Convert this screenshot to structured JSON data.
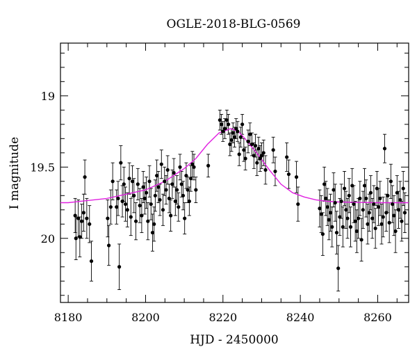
{
  "chart_data": {
    "type": "scatter",
    "title": "OGLE-2018-BLG-0569",
    "xlabel": "HJD - 2450000",
    "ylabel": "I magnitude",
    "xlim": [
      8178,
      8268
    ],
    "ylim": [
      20.45,
      18.63
    ],
    "y_inverted": true,
    "grid": false,
    "x_ticks": [
      8180,
      8200,
      8220,
      8240,
      8260
    ],
    "x_tick_labels": [
      "8180",
      "8200",
      "8220",
      "8240",
      "8260"
    ],
    "y_ticks": [
      19.0,
      19.5,
      20.0
    ],
    "y_tick_labels": [
      "19",
      "19.5",
      "20"
    ],
    "colors": {
      "points": "#000000",
      "model": "#e020e0"
    },
    "model": {
      "x": [
        8170,
        8180,
        8190,
        8200,
        8205,
        8210,
        8213,
        8216,
        8219,
        8222,
        8224,
        8226,
        8229,
        8232,
        8235,
        8238,
        8241,
        8244,
        8247,
        8250,
        8255,
        8260,
        8270
      ],
      "y": [
        19.75,
        19.75,
        19.72,
        19.66,
        19.6,
        19.51,
        19.44,
        19.34,
        19.26,
        19.23,
        19.25,
        19.31,
        19.41,
        19.52,
        19.62,
        19.68,
        19.71,
        19.73,
        19.74,
        19.745,
        19.748,
        19.75,
        19.75
      ]
    },
    "series": [
      {
        "x": [
          8181.8,
          8182.0,
          8182.6,
          8183.0,
          8183.5,
          8184.0,
          8184.3,
          8184.8,
          8185.5,
          8186.0,
          8190.2,
          8190.5,
          8191.0,
          8191.5,
          8192.5,
          8192.9,
          8193.2,
          8193.6,
          8194.0,
          8194.4,
          8194.8,
          8195.3,
          8195.8,
          8196.2,
          8196.6,
          8197.0,
          8197.5,
          8198.0,
          8198.5,
          8199.0,
          8199.4,
          8199.8,
          8200.2,
          8200.6,
          8201.0,
          8201.4,
          8201.8,
          8202.2,
          8202.5,
          8202.9,
          8203.3,
          8203.7,
          8204.1,
          8204.5,
          8204.9,
          8205.3,
          8205.7,
          8206.1,
          8206.5,
          8206.9,
          8207.3,
          8207.7,
          8208.1,
          8208.5,
          8208.9,
          8209.3,
          8209.7,
          8210.1,
          8210.5,
          8210.9,
          8211.3,
          8211.7,
          8212.1,
          8212.5,
          8213.0,
          8216.2,
          8219.2,
          8219.6,
          8220.0,
          8220.5,
          8221.0,
          8221.4,
          8221.8,
          8222.2,
          8222.6,
          8223.0,
          8223.4,
          8223.8,
          8224.2,
          8224.6,
          8225.0,
          8225.4,
          8225.8,
          8226.5,
          8227.0,
          8227.5,
          8228.0,
          8228.4,
          8228.8,
          8229.2,
          8229.6,
          8230.0,
          8230.5,
          8231.0,
          8233.0,
          8233.5,
          8236.5,
          8237.0,
          8239.0,
          8239.4,
          8245.0,
          8245.4,
          8245.8,
          8246.2,
          8246.6,
          8247.0,
          8247.4,
          8247.8,
          8248.2,
          8248.6,
          8249.0,
          8249.4,
          8249.8,
          8250.2,
          8250.6,
          8251.0,
          8251.4,
          8251.8,
          8252.2,
          8252.6,
          8253.0,
          8253.4,
          8253.8,
          8254.2,
          8254.6,
          8255.0,
          8255.4,
          8255.8,
          8256.2,
          8256.6,
          8257.0,
          8257.4,
          8257.8,
          8258.2,
          8258.6,
          8259.0,
          8259.4,
          8259.8,
          8260.2,
          8260.6,
          8261.0,
          8261.4,
          8261.8,
          8262.2,
          8262.6,
          8263.0,
          8263.4,
          8263.8,
          8264.2,
          8264.6,
          8265.0,
          8265.4,
          8265.8,
          8266.2,
          8266.6,
          8267.0
        ],
        "y": [
          19.84,
          20.0,
          19.86,
          19.99,
          19.88,
          19.82,
          19.57,
          19.86,
          19.9,
          20.16,
          19.86,
          20.05,
          19.78,
          19.6,
          19.78,
          19.72,
          20.2,
          19.47,
          19.74,
          19.62,
          19.76,
          19.8,
          19.58,
          19.85,
          19.6,
          19.7,
          19.88,
          19.62,
          19.77,
          19.84,
          19.64,
          19.72,
          19.68,
          19.88,
          19.6,
          19.76,
          19.96,
          19.9,
          19.7,
          19.56,
          19.64,
          19.73,
          19.48,
          19.8,
          19.6,
          19.66,
          19.52,
          19.72,
          19.84,
          19.62,
          19.54,
          19.74,
          19.66,
          19.78,
          19.5,
          19.62,
          19.7,
          19.86,
          19.56,
          19.66,
          19.74,
          19.58,
          19.48,
          19.5,
          19.66,
          19.49,
          19.17,
          19.2,
          19.25,
          19.23,
          19.17,
          19.2,
          19.34,
          19.31,
          19.26,
          19.29,
          19.23,
          19.25,
          19.41,
          19.29,
          19.2,
          19.38,
          19.44,
          19.32,
          19.27,
          19.34,
          19.42,
          19.35,
          19.47,
          19.37,
          19.44,
          19.42,
          19.4,
          19.52,
          19.38,
          19.53,
          19.43,
          19.55,
          19.57,
          19.76,
          19.79,
          19.83,
          19.97,
          19.62,
          19.72,
          19.78,
          19.87,
          19.82,
          19.92,
          19.66,
          19.75,
          19.96,
          20.21,
          19.85,
          19.74,
          19.92,
          19.65,
          19.8,
          19.86,
          19.7,
          19.92,
          19.63,
          19.76,
          19.88,
          19.95,
          19.86,
          19.72,
          20.01,
          19.8,
          19.63,
          19.72,
          19.9,
          19.82,
          19.68,
          19.86,
          19.76,
          19.93,
          19.65,
          19.78,
          19.72,
          19.9,
          19.85,
          19.37,
          19.82,
          19.7,
          19.89,
          19.6,
          19.76,
          19.84,
          19.95,
          19.68,
          19.8,
          19.73,
          19.88,
          19.65,
          19.82
        ],
        "yerr": [
          0.12,
          0.15,
          0.13,
          0.14,
          0.12,
          0.13,
          0.12,
          0.14,
          0.13,
          0.14,
          0.13,
          0.14,
          0.12,
          0.13,
          0.12,
          0.12,
          0.16,
          0.12,
          0.11,
          0.12,
          0.12,
          0.12,
          0.11,
          0.13,
          0.11,
          0.12,
          0.13,
          0.11,
          0.12,
          0.12,
          0.11,
          0.11,
          0.11,
          0.13,
          0.11,
          0.11,
          0.13,
          0.12,
          0.11,
          0.11,
          0.11,
          0.11,
          0.1,
          0.11,
          0.1,
          0.1,
          0.1,
          0.1,
          0.11,
          0.1,
          0.1,
          0.1,
          0.1,
          0.1,
          0.09,
          0.09,
          0.1,
          0.11,
          0.09,
          0.09,
          0.1,
          0.09,
          0.09,
          0.09,
          0.09,
          0.08,
          0.07,
          0.07,
          0.07,
          0.07,
          0.07,
          0.07,
          0.08,
          0.08,
          0.07,
          0.07,
          0.07,
          0.07,
          0.08,
          0.07,
          0.07,
          0.08,
          0.08,
          0.08,
          0.08,
          0.08,
          0.09,
          0.08,
          0.09,
          0.08,
          0.09,
          0.09,
          0.09,
          0.1,
          0.09,
          0.1,
          0.1,
          0.1,
          0.11,
          0.12,
          0.13,
          0.13,
          0.15,
          0.12,
          0.12,
          0.13,
          0.14,
          0.13,
          0.14,
          0.12,
          0.13,
          0.15,
          0.16,
          0.13,
          0.12,
          0.14,
          0.12,
          0.13,
          0.14,
          0.12,
          0.14,
          0.12,
          0.13,
          0.14,
          0.15,
          0.14,
          0.12,
          0.15,
          0.13,
          0.12,
          0.13,
          0.14,
          0.13,
          0.12,
          0.14,
          0.13,
          0.14,
          0.12,
          0.13,
          0.12,
          0.14,
          0.14,
          0.1,
          0.13,
          0.12,
          0.14,
          0.12,
          0.13,
          0.14,
          0.15,
          0.12,
          0.13,
          0.13,
          0.14,
          0.12,
          0.14
        ]
      }
    ]
  }
}
